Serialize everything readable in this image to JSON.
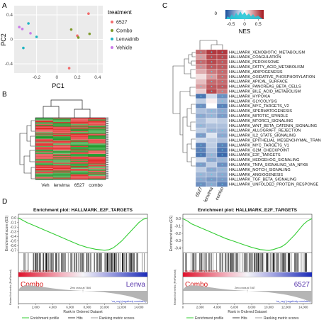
{
  "panel_labels": {
    "a": "A",
    "b": "B",
    "c": "C",
    "d": "D"
  },
  "chart_data": [
    {
      "panel": "A",
      "type": "scatter",
      "xlabel": "PC1",
      "ylabel": "PC2",
      "x_ticks": [
        -0.2,
        0.0,
        0.2,
        0.4
      ],
      "y_ticks": [
        0.4,
        0.0,
        -0.4
      ],
      "xlim": [
        -0.42,
        0.45
      ],
      "ylim": [
        -0.55,
        0.55
      ],
      "grid": true,
      "legend": {
        "title": "treatment",
        "placement": "right",
        "entries": [
          {
            "name": "6527",
            "color": "#f26b6b"
          },
          {
            "name": "Combo",
            "color": "#7d9a2a"
          },
          {
            "name": "Lenvatinib",
            "color": "#1fb5c2"
          },
          {
            "name": "Vehicle",
            "color": "#c97ae8"
          }
        ]
      },
      "series": [
        {
          "name": "6527",
          "color": "#f26b6b",
          "points": [
            [
              0.31,
              0.42
            ],
            [
              0.2,
              0.06
            ],
            [
              0.12,
              -0.47
            ]
          ]
        },
        {
          "name": "Combo",
          "color": "#7d9a2a",
          "points": [
            [
              0.14,
              0.16
            ],
            [
              0.21,
              0.03
            ],
            [
              0.32,
              0.09
            ]
          ]
        },
        {
          "name": "Lenvatinib",
          "color": "#1fb5c2",
          "points": [
            [
              -0.28,
              0.26
            ],
            [
              -0.2,
              0.04
            ],
            [
              -0.33,
              -0.14
            ]
          ]
        },
        {
          "name": "Vehicle",
          "color": "#c97ae8",
          "points": [
            [
              -0.37,
              0.2
            ],
            [
              -0.34,
              0.17
            ],
            [
              -0.26,
              0.1
            ]
          ]
        }
      ]
    },
    {
      "panel": "B",
      "type": "heatmap",
      "columns": [
        "Veh",
        "lenvima",
        "6527",
        "combo"
      ],
      "colors": {
        "high": "#e02020",
        "low": "#1f9a2a"
      }
    },
    {
      "panel": "C",
      "type": "heatmap",
      "colorbar": {
        "label": "NES",
        "ticks": [
          -0.5,
          0,
          0.5
        ],
        "range": [
          -0.7,
          0.7
        ]
      },
      "columns": [
        "6527",
        "lenvima",
        "combo"
      ],
      "rows": [
        "HALLMARK_XENOBIOTIC_METABOLISM",
        "HALLMARK_COAGULATION",
        "HALLMARK_PEROXISOME",
        "HALLMARK_FATTY_ACID_METABOLISM",
        "HALLMARK_ADIPOGENESIS",
        "HALLMARK_OXIDATIVE_PHOSPHORYLATION",
        "HALLMARK_APICAL_SURFACE",
        "HALLMARK_PANCREAS_BETA_CELLS",
        "HALLMARK_BILE_ACID_METABOLISM",
        "HALLMARK_HYPOXIA",
        "HALLMARK_GLYCOLYSIS",
        "HALLMARK_MYC_TARGETS_V2",
        "HALLMARK_SPERMATOGENESIS",
        "HALLMARK_MITOTIC_SPINDLE",
        "HALLMARK_MTORC1_SIGNALING",
        "HALLMARK_WNT_BETA_CATENIN_SIGNALING",
        "HALLMARK_ALLOGRAFT_REJECTION",
        "HALLMARK_IL2_STAT5_SIGNALING",
        "HALLMARK_EPITHELIAL_MESENCHYMAL_TRAN",
        "HALLMARK_MYC_TARGETS_V1",
        "HALLMARK_G2M_CHECKPOINT",
        "HALLMARK_E2F_TARGETS",
        "HALLMARK_HEDGEHOG_SIGNALING",
        "HALLMARK_TNFA_SIGNALING_VIA_NFKB",
        "HALLMARK_NOTCH_SIGNALING",
        "HALLMARK_ANGIOGENESIS",
        "HALLMARK_TGF_BETA_SIGNALING",
        "HALLMARK_UNFOLDED_PROTEIN_RESPONSE"
      ],
      "values": [
        [
          0.45,
          0.6,
          0.6
        ],
        [
          0.3,
          0.55,
          0.55
        ],
        [
          0.45,
          0.55,
          0.5
        ],
        [
          0.35,
          0.5,
          0.5
        ],
        [
          0.25,
          0.4,
          0.45
        ],
        [
          0.1,
          0.3,
          0.45
        ],
        [
          0.2,
          0.45,
          0.45
        ],
        [
          0.3,
          0.5,
          0.5
        ],
        [
          0.15,
          0.55,
          0.4
        ],
        [
          -0.55,
          -0.15,
          -0.45
        ],
        [
          -0.2,
          0.05,
          -0.3
        ],
        [
          -0.45,
          0.0,
          -0.5
        ],
        [
          -0.25,
          -0.3,
          -0.35
        ],
        [
          -0.35,
          -0.3,
          -0.4
        ],
        [
          -0.25,
          -0.15,
          -0.2
        ],
        [
          -0.3,
          -0.25,
          -0.25
        ],
        [
          -0.2,
          -0.3,
          -0.3
        ],
        [
          -0.4,
          -0.1,
          -0.35
        ],
        [
          -0.15,
          -0.2,
          -0.25
        ],
        [
          -0.5,
          -0.2,
          -0.5
        ],
        [
          -0.5,
          -0.25,
          -0.55
        ],
        [
          -0.55,
          -0.3,
          -0.6
        ],
        [
          -0.15,
          -0.35,
          -0.3
        ],
        [
          -0.4,
          -0.2,
          -0.45
        ],
        [
          -0.2,
          -0.35,
          -0.3
        ],
        [
          -0.3,
          -0.3,
          -0.35
        ],
        [
          -0.35,
          -0.4,
          -0.4
        ],
        [
          -0.45,
          -0.35,
          -0.5
        ]
      ]
    },
    {
      "panel": "D-left",
      "type": "line",
      "title": "Enrichment plot: HALLMARK_E2F_TARGETS",
      "ylabel": "Enrichment score (ES)",
      "y_ticks": [
        0.0,
        -0.1,
        -0.2,
        -0.3,
        -0.4,
        -0.5,
        -0.6,
        -0.7
      ],
      "ylim": [
        -0.75,
        0.08
      ],
      "es_x": [
        0,
        500,
        1000,
        2000,
        3000,
        4000,
        5000,
        6000,
        7000,
        8000,
        9000,
        10000,
        10500,
        11000,
        11500,
        12000,
        12500,
        13000,
        13500,
        14000,
        14500,
        15000
      ],
      "es_y": [
        0,
        -0.05,
        -0.1,
        -0.18,
        -0.26,
        -0.34,
        -0.42,
        -0.5,
        -0.58,
        -0.64,
        -0.68,
        -0.7,
        -0.69,
        -0.65,
        -0.58,
        -0.5,
        -0.4,
        -0.3,
        -0.2,
        -0.1,
        -0.03,
        0
      ],
      "gradient_labels": [
        "Combo",
        "Lenva"
      ],
      "gradient_label_colors": [
        "#d81818",
        "#5533aa"
      ],
      "rank_ylabel": "Ranked list metric (PreRanked)",
      "rank_xlabel": "Rank in Ordered Dataset",
      "x_ticks": [
        0,
        2000,
        4000,
        6000,
        8000,
        10000,
        12000,
        14000
      ],
      "pos_text": "'na_pos' (positively correlated)",
      "neg_text": "'na_neg' (negatively correlated)",
      "zero_text": "Zero cross at 7466",
      "legend": [
        "Enrichment profile",
        "Hits",
        "Ranking metric scores"
      ]
    },
    {
      "panel": "D-right",
      "type": "line",
      "title": "Enrichment plot: HALLMARK_E2F_TARGETS",
      "ylabel": "Enrichment score (ES)",
      "y_ticks": [
        0.0,
        -0.1,
        -0.2,
        -0.3,
        -0.4
      ],
      "ylim": [
        -0.46,
        0.06
      ],
      "es_x": [
        0,
        500,
        1000,
        2000,
        3000,
        4000,
        5000,
        6000,
        7000,
        8000,
        9000,
        10000,
        10500,
        11000,
        11500,
        12000,
        12500,
        13000,
        13500,
        14000,
        14500,
        15000
      ],
      "es_y": [
        0,
        -0.03,
        -0.07,
        -0.12,
        -0.17,
        -0.22,
        -0.27,
        -0.31,
        -0.35,
        -0.39,
        -0.42,
        -0.43,
        -0.42,
        -0.4,
        -0.38,
        -0.34,
        -0.28,
        -0.22,
        -0.15,
        -0.08,
        -0.03,
        0
      ],
      "gradient_labels": [
        "Combo",
        "6527"
      ],
      "gradient_label_colors": [
        "#d81818",
        "#5533aa"
      ],
      "rank_ylabel": "Ranked list metric (PreRanked)",
      "rank_xlabel": "Rank in Ordered Dataset",
      "x_ticks": [
        0,
        2000,
        4000,
        6000,
        8000,
        10000,
        12000,
        14000
      ],
      "pos_text": "'na_pos' (positively correlated)",
      "neg_text": "'na_neg' (negatively correlated)",
      "zero_text": "Zero cross at 7467",
      "legend": [
        "Enrichment profile",
        "Hits",
        "Ranking metric scores"
      ]
    }
  ]
}
